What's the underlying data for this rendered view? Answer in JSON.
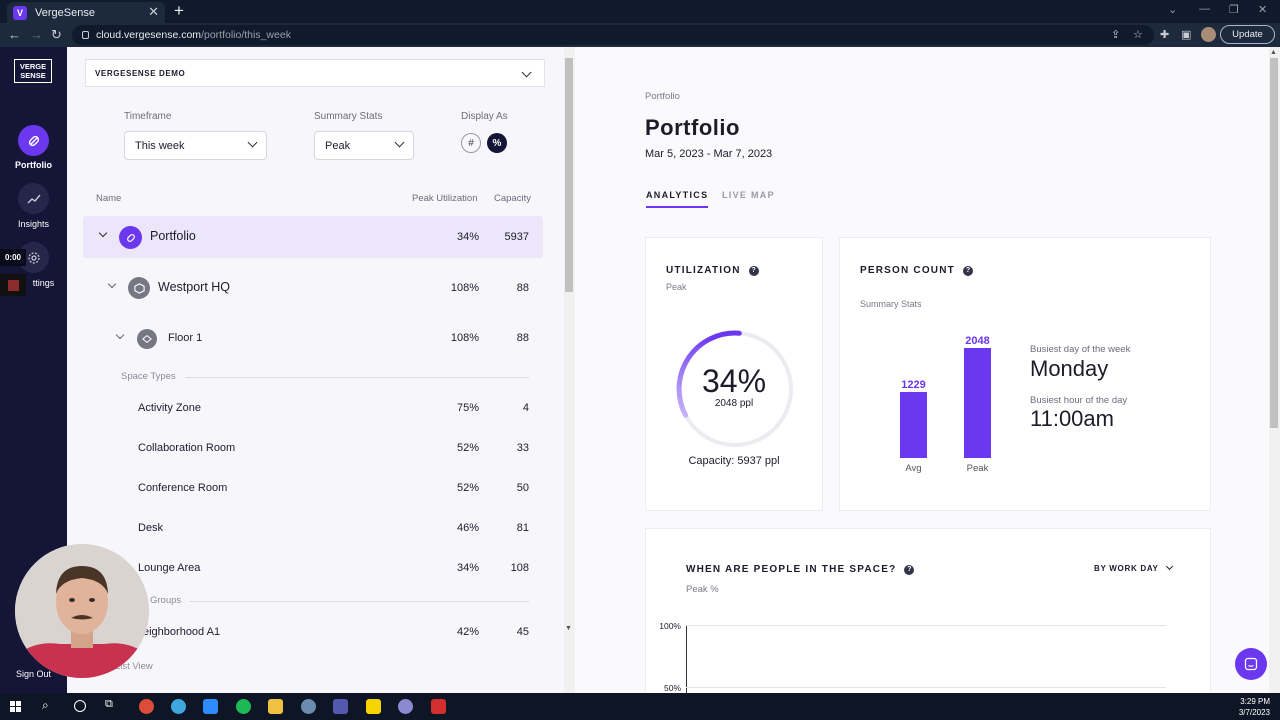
{
  "browser": {
    "tab_title": "VergeSense",
    "tab_favicon": "V",
    "url_host": "cloud.vergesense.com",
    "url_path": "/portfolio/this_week",
    "update_label": "Update"
  },
  "app_nav": {
    "logo_text_line1": "VERGE",
    "logo_text_line2": "SENSE",
    "items": [
      {
        "label": "Portfolio",
        "icon": "portfolio-icon",
        "active": true
      },
      {
        "label": "Insights",
        "icon": "trend-icon"
      },
      {
        "label": "ttings",
        "icon": "gear-icon"
      }
    ],
    "timer": "0:00",
    "sign_out": "Sign Out"
  },
  "filters": {
    "demo_label": "VERGESENSE DEMO",
    "timeframe_label": "Timeframe",
    "timeframe_value": "This week",
    "summary_label": "Summary Stats",
    "summary_value": "Peak",
    "display_label": "Display As",
    "display_options": [
      "#",
      "%"
    ],
    "display_selected": "%"
  },
  "table": {
    "headers": {
      "name": "Name",
      "peak": "Peak Utilization",
      "capacity": "Capacity"
    },
    "portfolio": {
      "name": "Portfolio",
      "peak": "34%",
      "capacity": "5937"
    },
    "building": {
      "name": "Westport HQ",
      "peak": "108%",
      "capacity": "88"
    },
    "floor": {
      "name": "Floor 1",
      "peak": "108%",
      "capacity": "88"
    },
    "space_types_label": "Space Types",
    "space_types": [
      {
        "name": "Activity Zone",
        "peak": "75%",
        "capacity": "4"
      },
      {
        "name": "Collaboration Room",
        "peak": "52%",
        "capacity": "33"
      },
      {
        "name": "Conference Room",
        "peak": "52%",
        "capacity": "50"
      },
      {
        "name": "Desk",
        "peak": "46%",
        "capacity": "81"
      },
      {
        "name": "Lounge Area",
        "peak": "34%",
        "capacity": "108"
      }
    ],
    "groups_label": "Groups",
    "groups": [
      {
        "name": "eighborhood A1",
        "peak": "42%",
        "capacity": "45"
      }
    ],
    "list_view": "e List View"
  },
  "main": {
    "breadcrumb": "Portfolio",
    "title": "Portfolio",
    "date_range": "Mar 5, 2023 - Mar 7, 2023",
    "tabs": [
      {
        "label": "ANALYTICS",
        "active": true
      },
      {
        "label": "LIVE MAP"
      }
    ],
    "utilization": {
      "title": "UTILIZATION",
      "subtitle": "Peak",
      "percent": "34%",
      "percent_value": 34,
      "people": "2048 ppl",
      "capacity": "Capacity: 5937 ppl"
    },
    "person_count": {
      "title": "PERSON COUNT",
      "subtitle": "Summary Stats",
      "busiest_day_label": "Busiest day of the week",
      "busiest_day": "Monday",
      "busiest_hour_label": "Busiest hour of the day",
      "busiest_hour": "11:00am"
    },
    "when": {
      "title": "WHEN ARE PEOPLE IN THE SPACE?",
      "subtitle": "Peak %",
      "dropdown": "BY WORK DAY",
      "y_ticks": [
        "100%",
        "50%"
      ]
    }
  },
  "chart_data": {
    "type": "bar",
    "categories": [
      "Avg",
      "Peak"
    ],
    "values": [
      1229,
      2048
    ],
    "ylim": [
      0,
      2048
    ],
    "color": "#6b38f0"
  },
  "colors": {
    "accent": "#6b38f0",
    "nav_bg": "#151537",
    "highlight_row": "#ece6fb"
  },
  "taskbar": {
    "time": "3:29 PM",
    "date": "3/7/2023"
  }
}
